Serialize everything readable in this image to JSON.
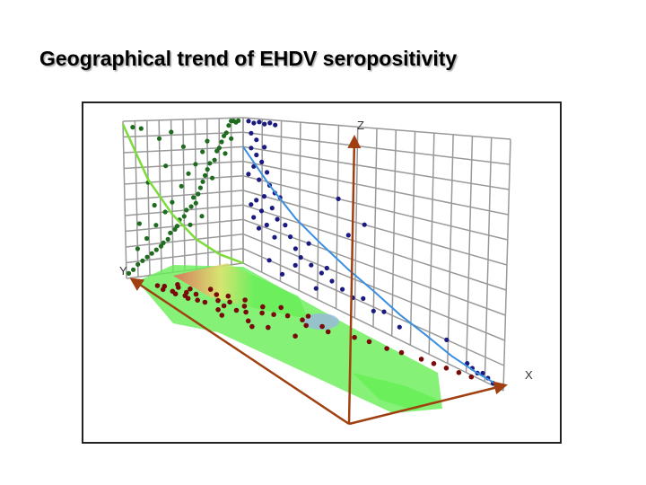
{
  "slide": {
    "title": "Geographical trend of EHDV seropositivity"
  },
  "chart_data": {
    "type": "scatter",
    "title": "Geographical trend of EHDV seropositivity",
    "axes": {
      "x_label": "X",
      "y_label": "Y",
      "z_label": "Z"
    },
    "grid": true,
    "colors": {
      "yz_points": "#1f6b1f",
      "yz_trend": "#7ddc3c",
      "xz_points": "#1a1a80",
      "xz_trend": "#3b8fe0",
      "xy_points": "#7a0a0a",
      "surface_low": "#66ee55",
      "surface_mid": "#f0e070",
      "surface_high": "#ee5555",
      "surface_cold": "#9ab8e0",
      "axis": "#a04010",
      "grid": "#999999"
    },
    "series": [
      {
        "projection": "Y-Z",
        "points": [
          [
            0.96,
            0.98
          ],
          [
            0.94,
            0.97
          ],
          [
            0.92,
            0.98
          ],
          [
            0.9,
            0.98
          ],
          [
            0.88,
            0.95
          ],
          [
            0.86,
            0.9
          ],
          [
            0.84,
            0.88
          ],
          [
            0.9,
            0.86
          ],
          [
            0.82,
            0.84
          ],
          [
            0.8,
            0.8
          ],
          [
            0.78,
            0.78
          ],
          [
            0.85,
            0.76
          ],
          [
            0.76,
            0.72
          ],
          [
            0.72,
            0.7
          ],
          [
            0.7,
            0.66
          ],
          [
            0.68,
            0.62
          ],
          [
            0.74,
            0.6
          ],
          [
            0.66,
            0.58
          ],
          [
            0.64,
            0.54
          ],
          [
            0.62,
            0.5
          ],
          [
            0.58,
            0.48
          ],
          [
            0.6,
            0.44
          ],
          [
            0.56,
            0.42
          ],
          [
            0.52,
            0.4
          ],
          [
            0.5,
            0.36
          ],
          [
            0.46,
            0.34
          ],
          [
            0.44,
            0.3
          ],
          [
            0.42,
            0.28
          ],
          [
            0.38,
            0.26
          ],
          [
            0.36,
            0.22
          ],
          [
            0.32,
            0.2
          ],
          [
            0.3,
            0.18
          ],
          [
            0.26,
            0.16
          ],
          [
            0.22,
            0.14
          ],
          [
            0.18,
            0.12
          ],
          [
            0.14,
            0.1
          ],
          [
            0.1,
            0.08
          ],
          [
            0.06,
            0.05
          ],
          [
            0.02,
            0.03
          ],
          [
            0.1,
            0.18
          ],
          [
            0.18,
            0.24
          ],
          [
            0.26,
            0.32
          ],
          [
            0.34,
            0.4
          ],
          [
            0.4,
            0.46
          ],
          [
            0.48,
            0.56
          ],
          [
            0.54,
            0.64
          ],
          [
            0.6,
            0.7
          ],
          [
            0.66,
            0.78
          ],
          [
            0.7,
            0.85
          ],
          [
            0.15,
            0.95
          ],
          [
            0.08,
            0.96
          ],
          [
            0.3,
            0.88
          ],
          [
            0.4,
            0.92
          ],
          [
            0.5,
            0.82
          ],
          [
            0.2,
            0.6
          ],
          [
            0.35,
            0.7
          ],
          [
            0.25,
            0.45
          ],
          [
            0.55,
            0.3
          ],
          [
            0.65,
            0.35
          ],
          [
            0.12,
            0.34
          ]
        ],
        "trend": [
          [
            0.0,
            0.0
          ],
          [
            0.2,
            0.08
          ],
          [
            0.4,
            0.2
          ],
          [
            0.6,
            0.38
          ],
          [
            0.8,
            0.62
          ],
          [
            1.0,
            0.98
          ]
        ]
      },
      {
        "projection": "X-Z",
        "points": [
          [
            0.02,
            0.98
          ],
          [
            0.04,
            0.97
          ],
          [
            0.06,
            0.98
          ],
          [
            0.08,
            0.97
          ],
          [
            0.1,
            0.98
          ],
          [
            0.12,
            0.97
          ],
          [
            0.03,
            0.9
          ],
          [
            0.05,
            0.86
          ],
          [
            0.08,
            0.82
          ],
          [
            0.03,
            0.8
          ],
          [
            0.05,
            0.76
          ],
          [
            0.07,
            0.72
          ],
          [
            0.04,
            0.68
          ],
          [
            0.09,
            0.66
          ],
          [
            0.02,
            0.62
          ],
          [
            0.06,
            0.6
          ],
          [
            0.1,
            0.58
          ],
          [
            0.12,
            0.54
          ],
          [
            0.14,
            0.52
          ],
          [
            0.08,
            0.5
          ],
          [
            0.05,
            0.46
          ],
          [
            0.11,
            0.44
          ],
          [
            0.03,
            0.42
          ],
          [
            0.07,
            0.4
          ],
          [
            0.13,
            0.38
          ],
          [
            0.16,
            0.36
          ],
          [
            0.04,
            0.34
          ],
          [
            0.09,
            0.32
          ],
          [
            0.18,
            0.3
          ],
          [
            0.06,
            0.28
          ],
          [
            0.12,
            0.26
          ],
          [
            0.2,
            0.24
          ],
          [
            0.22,
            0.2
          ],
          [
            0.26,
            0.18
          ],
          [
            0.3,
            0.16
          ],
          [
            0.34,
            0.14
          ],
          [
            0.38,
            0.12
          ],
          [
            0.42,
            0.1
          ],
          [
            0.46,
            0.12
          ],
          [
            0.5,
            0.08
          ],
          [
            0.54,
            0.1
          ],
          [
            0.36,
            0.6
          ],
          [
            0.4,
            0.42
          ],
          [
            0.46,
            0.5
          ],
          [
            0.86,
            0.04
          ],
          [
            0.88,
            0.03
          ],
          [
            0.9,
            0.02
          ],
          [
            0.92,
            0.03
          ],
          [
            0.94,
            0.02
          ],
          [
            0.96,
            0.01
          ],
          [
            0.78,
            0.1
          ],
          [
            0.6,
            0.06
          ],
          [
            0.2,
            0.14
          ],
          [
            0.28,
            0.06
          ],
          [
            0.32,
            0.2
          ],
          [
            0.15,
            0.05
          ],
          [
            0.25,
            0.3
          ],
          [
            0.1,
            0.1
          ]
        ],
        "trend": [
          [
            0.0,
            0.8
          ],
          [
            0.1,
            0.58
          ],
          [
            0.2,
            0.42
          ],
          [
            0.3,
            0.32
          ],
          [
            0.4,
            0.24
          ],
          [
            0.5,
            0.18
          ],
          [
            0.6,
            0.12
          ],
          [
            0.7,
            0.08
          ],
          [
            0.8,
            0.04
          ],
          [
            0.9,
            0.02
          ],
          [
            1.0,
            0.01
          ]
        ]
      },
      {
        "projection": "X-Y",
        "points": [
          [
            0.05,
            0.9
          ],
          [
            0.06,
            0.86
          ],
          [
            0.08,
            0.92
          ],
          [
            0.1,
            0.88
          ],
          [
            0.12,
            0.9
          ],
          [
            0.14,
            0.86
          ],
          [
            0.16,
            0.88
          ],
          [
            0.18,
            0.84
          ],
          [
            0.2,
            0.82
          ],
          [
            0.12,
            0.8
          ],
          [
            0.08,
            0.78
          ],
          [
            0.06,
            0.74
          ],
          [
            0.1,
            0.72
          ],
          [
            0.14,
            0.76
          ],
          [
            0.2,
            0.7
          ],
          [
            0.24,
            0.74
          ],
          [
            0.28,
            0.72
          ],
          [
            0.3,
            0.68
          ],
          [
            0.22,
            0.64
          ],
          [
            0.16,
            0.62
          ],
          [
            0.12,
            0.58
          ],
          [
            0.18,
            0.56
          ],
          [
            0.26,
            0.6
          ],
          [
            0.32,
            0.58
          ],
          [
            0.34,
            0.52
          ],
          [
            0.28,
            0.48
          ],
          [
            0.22,
            0.5
          ],
          [
            0.36,
            0.44
          ],
          [
            0.4,
            0.4
          ],
          [
            0.44,
            0.46
          ],
          [
            0.46,
            0.36
          ],
          [
            0.5,
            0.4
          ],
          [
            0.38,
            0.3
          ],
          [
            0.3,
            0.36
          ],
          [
            0.56,
            0.3
          ],
          [
            0.6,
            0.26
          ],
          [
            0.66,
            0.24
          ],
          [
            0.7,
            0.2
          ],
          [
            0.76,
            0.16
          ],
          [
            0.8,
            0.14
          ],
          [
            0.84,
            0.12
          ],
          [
            0.88,
            0.1
          ],
          [
            0.92,
            0.08
          ],
          [
            0.26,
            0.84
          ],
          [
            0.36,
            0.8
          ],
          [
            0.42,
            0.76
          ],
          [
            0.5,
            0.7
          ],
          [
            0.3,
            0.9
          ],
          [
            0.4,
            0.86
          ]
        ]
      }
    ]
  }
}
